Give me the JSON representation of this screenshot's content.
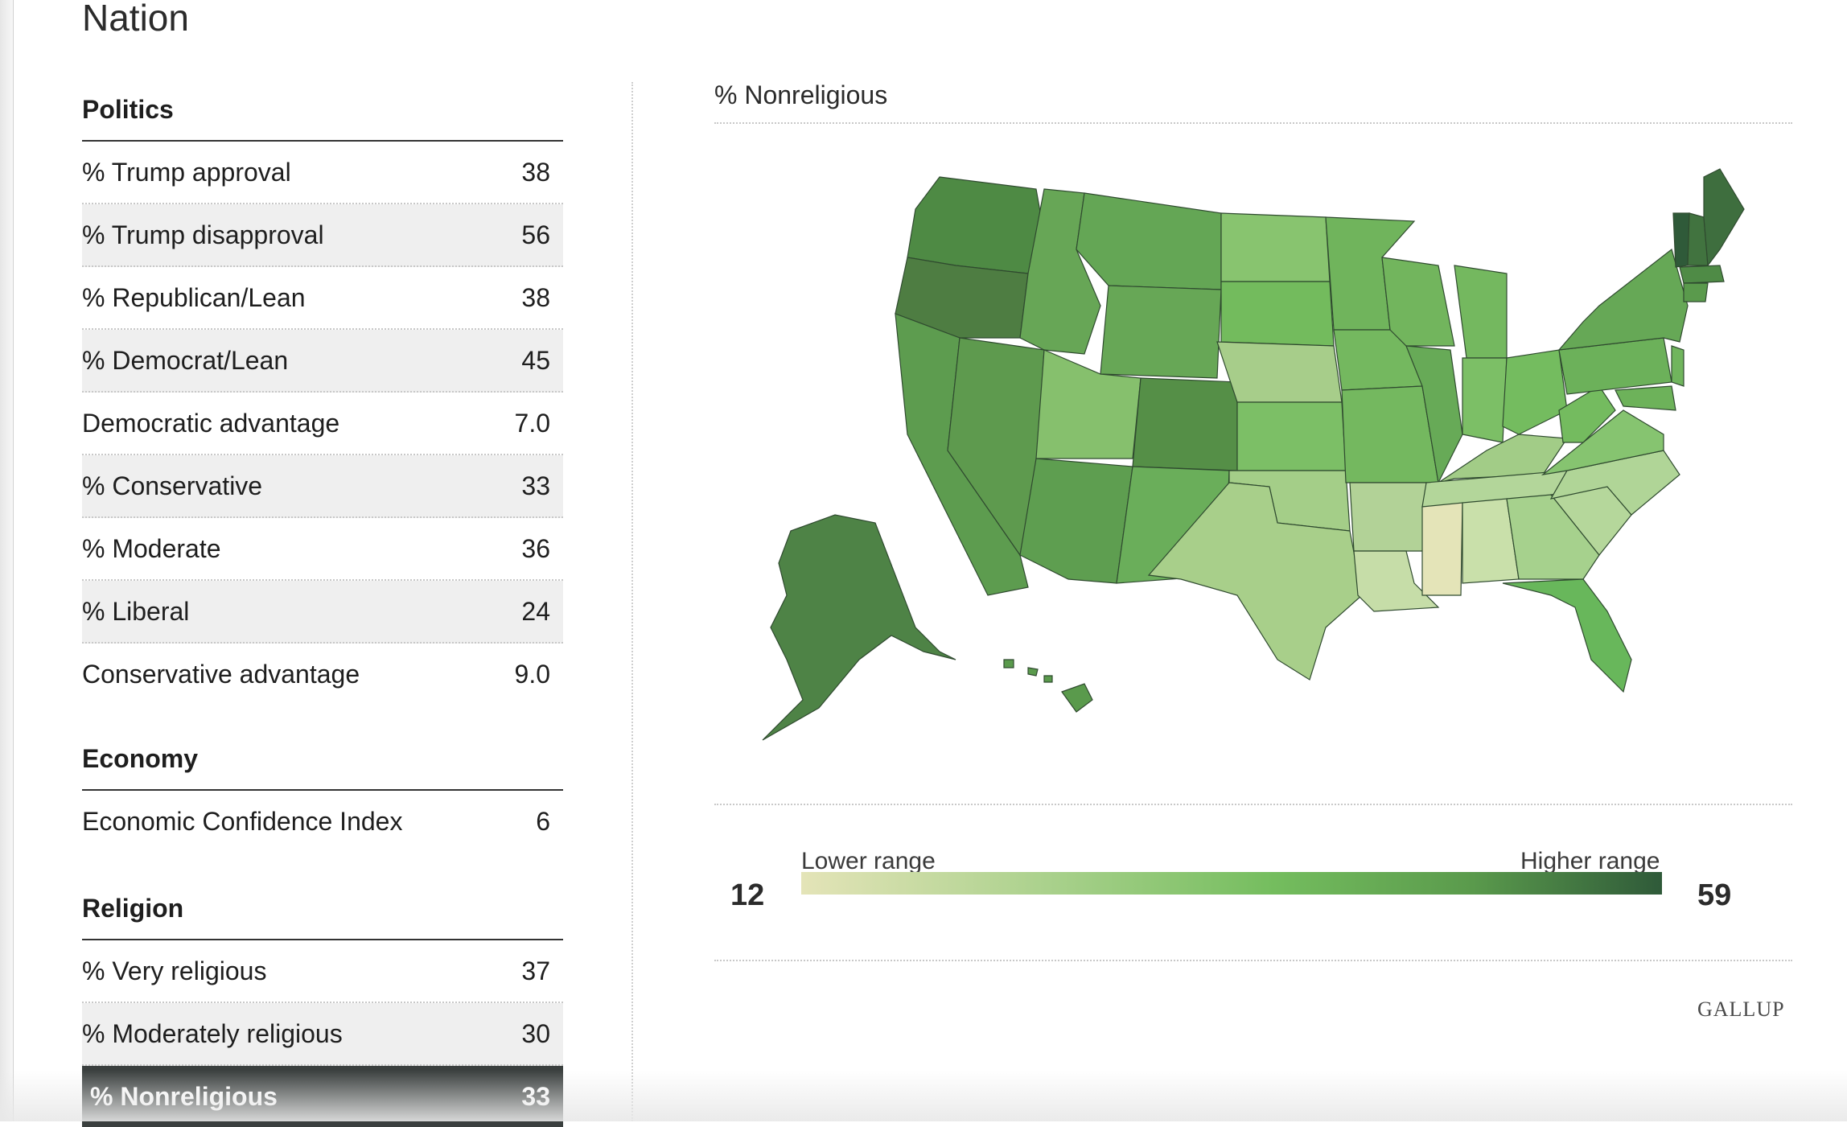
{
  "page_title": "Nation",
  "sections": [
    {
      "title": "Politics",
      "rows": [
        {
          "label": "% Trump approval",
          "value": "38"
        },
        {
          "label": "% Trump disapproval",
          "value": "56"
        },
        {
          "label": "% Republican/Lean",
          "value": "38"
        },
        {
          "label": "% Democrat/Lean",
          "value": "45"
        },
        {
          "label": "Democratic advantage",
          "value": "7.0"
        },
        {
          "label": "% Conservative",
          "value": "33"
        },
        {
          "label": "% Moderate",
          "value": "36"
        },
        {
          "label": "% Liberal",
          "value": "24"
        },
        {
          "label": "Conservative advantage",
          "value": "9.0"
        }
      ]
    },
    {
      "title": "Economy",
      "rows": [
        {
          "label": "Economic Confidence Index",
          "value": "6"
        }
      ]
    },
    {
      "title": "Religion",
      "rows": [
        {
          "label": "% Very religious",
          "value": "37"
        },
        {
          "label": "% Moderately religious",
          "value": "30"
        },
        {
          "label": "% Nonreligious",
          "value": "33"
        }
      ]
    }
  ],
  "selected_metric": "% Nonreligious",
  "map": {
    "title": "% Nonreligious",
    "legend": {
      "lower_label": "Lower range",
      "higher_label": "Higher range",
      "min": "12",
      "max": "59"
    },
    "colors": {
      "lowest": "#e4e4b8",
      "low": "#a7d08a",
      "mid": "#74bd5e",
      "high": "#5a9a4c",
      "highest": "#2f5a39"
    }
  },
  "brand": "GALLUP"
}
